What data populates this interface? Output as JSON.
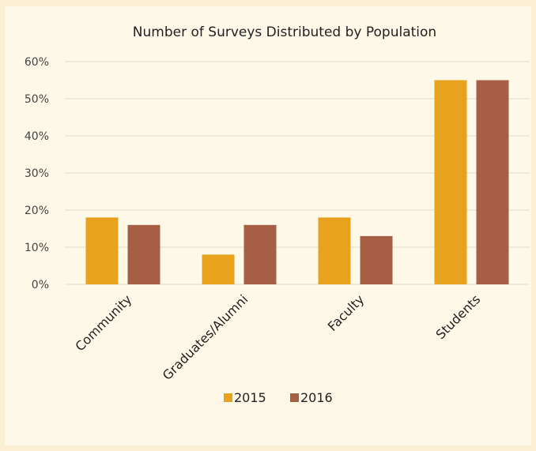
{
  "colors": {
    "background": "#fbf0d4",
    "panel": "#fdf8e8",
    "grid": "#e2dccb"
  },
  "chart_data": {
    "type": "bar",
    "title": "Number of Surveys Distributed by Population",
    "categories": [
      "Community",
      "Graduates/Alumni",
      "Faculty",
      "Students"
    ],
    "series": [
      {
        "name": "2015",
        "color": "#e8a21e",
        "values": [
          18,
          8,
          18,
          55
        ]
      },
      {
        "name": "2016",
        "color": "#a65f45",
        "values": [
          16,
          16,
          13,
          55
        ]
      }
    ],
    "ylim": [
      0,
      60
    ],
    "yticks": [
      "0%",
      "10%",
      "20%",
      "30%",
      "40%",
      "50%",
      "60%"
    ],
    "ylabel": "",
    "xlabel": "",
    "grid": true,
    "legend": "bottom"
  }
}
